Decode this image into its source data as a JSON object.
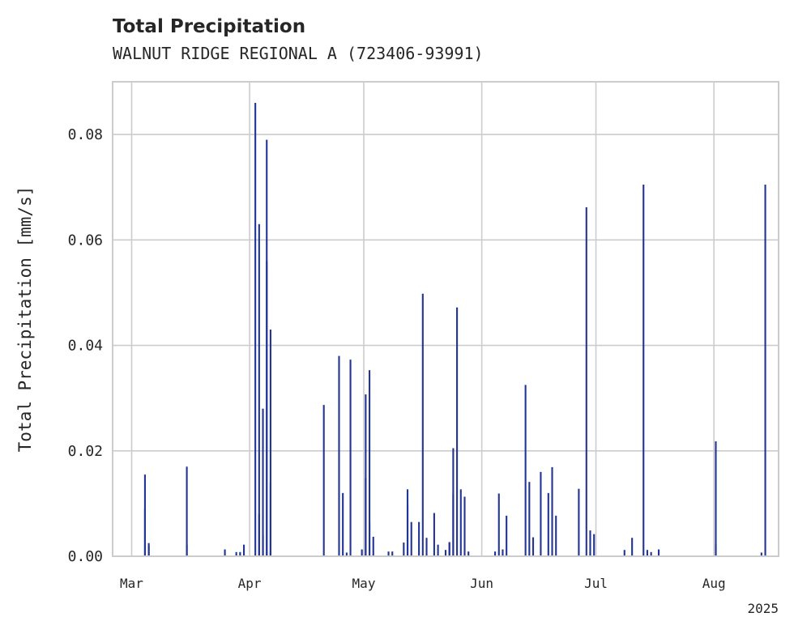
{
  "chart_data": {
    "type": "bar",
    "title": "Total Precipitation",
    "subtitle": "WALNUT RIDGE REGIONAL A (723406-93991)",
    "xlabel": "",
    "ylabel": "Total Precipitation [mm/s]",
    "xlim": [
      "2025-02-24",
      "2025-08-18"
    ],
    "ylim": [
      0,
      0.09
    ],
    "yticks": [
      0.0,
      0.02,
      0.04,
      0.06,
      0.08
    ],
    "ytick_labels": [
      "0.00",
      "0.02",
      "0.04",
      "0.06",
      "0.08"
    ],
    "xticks": [
      "2025-03-01",
      "2025-04-01",
      "2025-05-01",
      "2025-06-01",
      "2025-07-01",
      "2025-08-01"
    ],
    "xtick_labels": [
      "Mar",
      "Apr",
      "May",
      "Jun",
      "Jul",
      "Aug"
    ],
    "x_offset_label": "2025",
    "grid": true,
    "legend": "none",
    "color": "#233594",
    "x": [
      "2025-03-04",
      "2025-03-04",
      "2025-03-05",
      "2025-03-05",
      "2025-03-15",
      "2025-03-15",
      "2025-03-25",
      "2025-03-28",
      "2025-03-29",
      "2025-03-30",
      "2025-04-02",
      "2025-04-03",
      "2025-04-03",
      "2025-04-04",
      "2025-04-04",
      "2025-04-05",
      "2025-04-05",
      "2025-04-06",
      "2025-04-06",
      "2025-04-06",
      "2025-04-20",
      "2025-04-24",
      "2025-04-25",
      "2025-04-26",
      "2025-04-27",
      "2025-04-30",
      "2025-05-01",
      "2025-05-01",
      "2025-05-02",
      "2025-05-02",
      "2025-05-03",
      "2025-05-07",
      "2025-05-08",
      "2025-05-11",
      "2025-05-12",
      "2025-05-12",
      "2025-05-13",
      "2025-05-15",
      "2025-05-16",
      "2025-05-17",
      "2025-05-19",
      "2025-05-20",
      "2025-05-22",
      "2025-05-23",
      "2025-05-23",
      "2025-05-24",
      "2025-05-24",
      "2025-05-25",
      "2025-05-26",
      "2025-05-27",
      "2025-05-28",
      "2025-06-04",
      "2025-06-05",
      "2025-06-06",
      "2025-06-07",
      "2025-06-12",
      "2025-06-13",
      "2025-06-14",
      "2025-06-16",
      "2025-06-18",
      "2025-06-19",
      "2025-06-20",
      "2025-06-26",
      "2025-06-28",
      "2025-06-29",
      "2025-06-29",
      "2025-06-30",
      "2025-07-08",
      "2025-07-10",
      "2025-07-13",
      "2025-07-14",
      "2025-07-15",
      "2025-07-17",
      "2025-08-01",
      "2025-08-01",
      "2025-08-13",
      "2025-08-14"
    ],
    "values": [
      0.009,
      0.0155,
      0.0025,
      0.002,
      0.017,
      0.0022,
      0.0013,
      0.0008,
      0.0008,
      0.0022,
      0.086,
      0.063,
      0.008,
      0.028,
      0.004,
      0.079,
      0.056,
      0.043,
      0.014,
      0.0008,
      0.0287,
      0.038,
      0.012,
      0.0007,
      0.0373,
      0.0013,
      0.0307,
      0.0148,
      0.0353,
      0.0065,
      0.0037,
      0.0009,
      0.0009,
      0.0026,
      0.0098,
      0.0127,
      0.0065,
      0.0065,
      0.0498,
      0.0035,
      0.0082,
      0.0022,
      0.0012,
      0.0025,
      0.0027,
      0.0205,
      0.0118,
      0.0472,
      0.0127,
      0.0113,
      0.0009,
      0.0009,
      0.0119,
      0.0013,
      0.0077,
      0.0325,
      0.0141,
      0.0036,
      0.016,
      0.012,
      0.0169,
      0.0077,
      0.0128,
      0.0662,
      0.0008,
      0.0049,
      0.0042,
      0.0012,
      0.0035,
      0.0705,
      0.0012,
      0.0008,
      0.0013,
      0.0218,
      0.0022,
      0.0007,
      0.0705
    ]
  }
}
